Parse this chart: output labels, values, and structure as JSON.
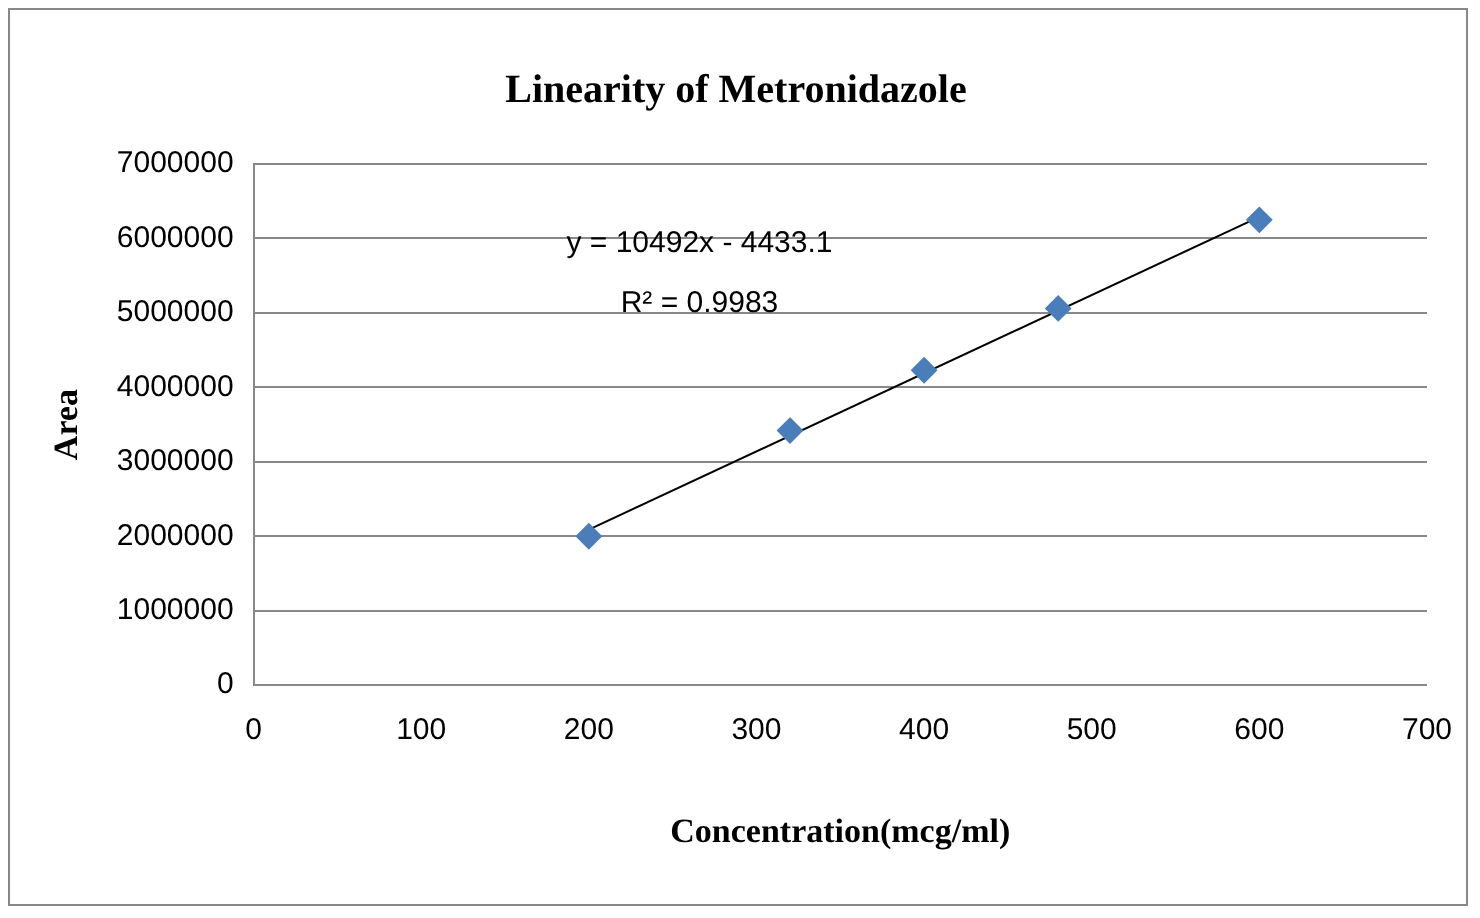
{
  "chart_data": {
    "type": "scatter",
    "title": "Linearity of Metronidazole",
    "xlabel": "Concentration(mcg/ml)",
    "ylabel": "Area",
    "xlim": [
      0,
      700
    ],
    "xticks": [
      0,
      100,
      200,
      300,
      400,
      500,
      600,
      700
    ],
    "ylim": [
      0,
      7000000
    ],
    "yticks": [
      0,
      1000000,
      2000000,
      3000000,
      4000000,
      5000000,
      6000000,
      7000000
    ],
    "grid": "y",
    "legend": false,
    "marker": "diamond",
    "annotations": [
      "y = 10492x - 4433.1",
      "R² = 0.9983"
    ],
    "series": [
      {
        "type": "scatter",
        "color": "#4a7ebb",
        "x": [
          200,
          320,
          400,
          480,
          600
        ],
        "values": [
          2000000,
          3420000,
          4230000,
          5060000,
          6250000
        ]
      },
      {
        "type": "line",
        "color": "#000000",
        "marker": "none",
        "x": [
          200,
          600
        ],
        "values": [
          2090000,
          6290000
        ]
      }
    ]
  }
}
